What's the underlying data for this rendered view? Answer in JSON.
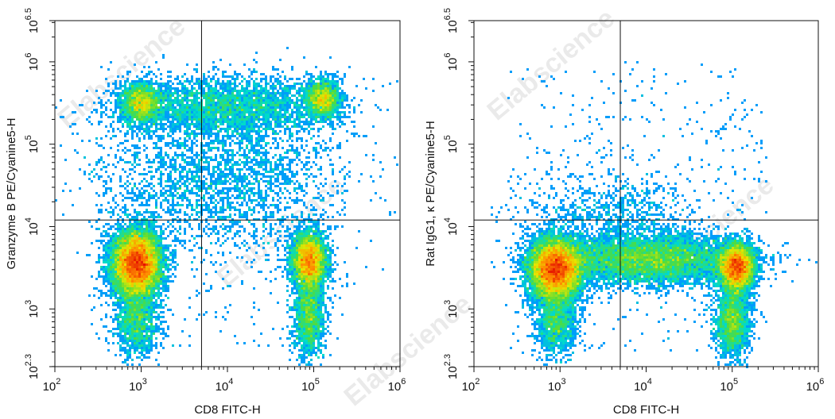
{
  "watermark": "Elabscience",
  "chart_data": [
    {
      "type": "scatter",
      "subtype": "flow-cytometry-density-dot-plot",
      "xlabel": "CD8 FITC-H",
      "ylabel": "Granzyme B PE/Cyanine5-H",
      "xscale": "log",
      "yscale": "log",
      "xlim_log10": [
        2,
        6
      ],
      "ylim_log10": [
        2.3,
        6.5
      ],
      "x_ticks": [
        {
          "base": "10",
          "exp": "2"
        },
        {
          "base": "10",
          "exp": "3"
        },
        {
          "base": "10",
          "exp": "4"
        },
        {
          "base": "10",
          "exp": "5"
        },
        {
          "base": "10",
          "exp": "6"
        }
      ],
      "y_ticks": [
        {
          "base": "10",
          "exp": "2.3"
        },
        {
          "base": "10",
          "exp": "3"
        },
        {
          "base": "10",
          "exp": "4"
        },
        {
          "base": "10",
          "exp": "5"
        },
        {
          "base": "10",
          "exp": "6"
        },
        {
          "base": "10",
          "exp": "6.5"
        }
      ],
      "quadrant_gate_log10": {
        "x": 3.7,
        "y": 4.08
      },
      "populations": [
        {
          "x_log10": 2.95,
          "y_log10": 3.55,
          "sx": 0.14,
          "sy": 0.2,
          "weight": 0.38
        },
        {
          "x_log10": 4.95,
          "y_log10": 3.58,
          "sx": 0.1,
          "sy": 0.17,
          "weight": 0.16
        },
        {
          "x_log10": 3.0,
          "y_log10": 5.5,
          "sx": 0.12,
          "sy": 0.12,
          "weight": 0.07
        },
        {
          "x_log10": 5.1,
          "y_log10": 5.55,
          "sx": 0.1,
          "sy": 0.12,
          "weight": 0.06
        },
        {
          "x_log10": 4.0,
          "y_log10": 5.45,
          "sx": 0.6,
          "sy": 0.18,
          "weight": 0.12
        },
        {
          "x_log10": 3.9,
          "y_log10": 4.6,
          "sx": 0.7,
          "sy": 0.45,
          "weight": 0.1
        },
        {
          "x_log10": 2.95,
          "y_log10": 2.85,
          "sx": 0.12,
          "sy": 0.22,
          "weight": 0.05
        },
        {
          "x_log10": 4.95,
          "y_log10": 2.9,
          "sx": 0.09,
          "sy": 0.25,
          "weight": 0.06
        }
      ]
    },
    {
      "type": "scatter",
      "subtype": "flow-cytometry-density-dot-plot",
      "xlabel": "CD8 FITC-H",
      "ylabel": "Rat IgG1, κ PE/Cyanine5-H",
      "xscale": "log",
      "yscale": "log",
      "xlim_log10": [
        2,
        6
      ],
      "ylim_log10": [
        2.3,
        6.5
      ],
      "x_ticks": [
        {
          "base": "10",
          "exp": "2"
        },
        {
          "base": "10",
          "exp": "3"
        },
        {
          "base": "10",
          "exp": "4"
        },
        {
          "base": "10",
          "exp": "5"
        },
        {
          "base": "10",
          "exp": "6"
        }
      ],
      "y_ticks": [
        {
          "base": "10",
          "exp": "2.3"
        },
        {
          "base": "10",
          "exp": "3"
        },
        {
          "base": "10",
          "exp": "4"
        },
        {
          "base": "10",
          "exp": "5"
        },
        {
          "base": "10",
          "exp": "6"
        },
        {
          "base": "10",
          "exp": "6.5"
        }
      ],
      "quadrant_gate_log10": {
        "x": 3.7,
        "y": 4.08
      },
      "populations": [
        {
          "x_log10": 2.95,
          "y_log10": 3.48,
          "sx": 0.15,
          "sy": 0.18,
          "weight": 0.4
        },
        {
          "x_log10": 5.05,
          "y_log10": 3.5,
          "sx": 0.1,
          "sy": 0.14,
          "weight": 0.2
        },
        {
          "x_log10": 4.0,
          "y_log10": 3.6,
          "sx": 0.55,
          "sy": 0.15,
          "weight": 0.25
        },
        {
          "x_log10": 2.95,
          "y_log10": 2.85,
          "sx": 0.12,
          "sy": 0.2,
          "weight": 0.05
        },
        {
          "x_log10": 5.0,
          "y_log10": 2.85,
          "sx": 0.1,
          "sy": 0.22,
          "weight": 0.07
        },
        {
          "x_log10": 3.6,
          "y_log10": 4.15,
          "sx": 0.5,
          "sy": 0.25,
          "weight": 0.03
        }
      ]
    }
  ]
}
